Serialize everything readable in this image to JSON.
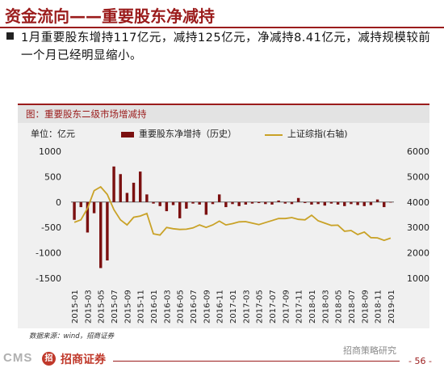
{
  "slide": {
    "title": "资金流向——重要股东净减持",
    "bullet": "1月重要股东增持117亿元，减持125亿元，净减持8.41亿元，减持规模较前一个月已经明显缩小。"
  },
  "chart_data": {
    "type": "bar+line",
    "title": "图：重要股东二级市场增减持",
    "unit_label": "单位：亿元",
    "categories": [
      "2015-01",
      "2015-02",
      "2015-03",
      "2015-04",
      "2015-05",
      "2015-06",
      "2015-07",
      "2015-08",
      "2015-09",
      "2015-10",
      "2015-11",
      "2015-12",
      "2016-01",
      "2016-02",
      "2016-03",
      "2016-04",
      "2016-05",
      "2016-06",
      "2016-07",
      "2016-08",
      "2016-09",
      "2016-10",
      "2016-11",
      "2016-12",
      "2017-01",
      "2017-02",
      "2017-03",
      "2017-04",
      "2017-05",
      "2017-06",
      "2017-07",
      "2017-08",
      "2017-09",
      "2017-10",
      "2017-11",
      "2017-12",
      "2018-01",
      "2018-02",
      "2018-03",
      "2018-04",
      "2018-05",
      "2018-06",
      "2018-07",
      "2018-08",
      "2018-09",
      "2018-10",
      "2018-11",
      "2018-12",
      "2019-01"
    ],
    "tick_labels": [
      "2015-01",
      "2015-03",
      "2015-05",
      "2015-07",
      "2015-09",
      "2015-11",
      "2016-01",
      "2016-03",
      "2016-05",
      "2016-07",
      "2016-09",
      "2016-11",
      "2017-01",
      "2017-03",
      "2017-05",
      "2017-07",
      "2017-09",
      "2017-11",
      "2018-01",
      "2018-03",
      "2018-05",
      "2018-07",
      "2018-09",
      "2018-11",
      "2019-01"
    ],
    "series": [
      {
        "name": "重要股东净增持（历史）",
        "type": "bar",
        "axis": "left",
        "color": "#7b1010",
        "values": [
          -350,
          -100,
          -600,
          -220,
          -1300,
          -1150,
          700,
          550,
          180,
          380,
          600,
          150,
          -30,
          -80,
          -180,
          -60,
          -320,
          -130,
          -30,
          -50,
          -250,
          -40,
          150,
          -100,
          -40,
          -80,
          -50,
          -30,
          -20,
          -40,
          -50,
          30,
          -30,
          -40,
          80,
          -20,
          -50,
          -40,
          -70,
          -30,
          -50,
          -80,
          -40,
          -60,
          -80,
          -60,
          50,
          -100,
          -10
        ]
      },
      {
        "name": "上证综指(右轴)",
        "type": "line",
        "axis": "right",
        "color": "#c9a227",
        "values": [
          3200,
          3300,
          3750,
          4450,
          4600,
          4300,
          3700,
          3300,
          3100,
          3400,
          3450,
          3550,
          2750,
          2700,
          3000,
          2950,
          2920,
          2930,
          2980,
          3100,
          3000,
          3100,
          3250,
          3100,
          3150,
          3220,
          3230,
          3170,
          3110,
          3190,
          3270,
          3350,
          3350,
          3390,
          3320,
          3300,
          3480,
          3260,
          3170,
          3080,
          3090,
          2850,
          2880,
          2720,
          2820,
          2600,
          2590,
          2490,
          2580
        ]
      }
    ],
    "y_left": {
      "ticks": [
        1000,
        500,
        0,
        -500,
        -1000,
        -1500
      ],
      "range": [
        -1500,
        1000
      ]
    },
    "y_right": {
      "ticks": [
        6000,
        5000,
        4000,
        3000,
        2000,
        1000
      ],
      "range": [
        1000,
        6000
      ]
    }
  },
  "source": "数据来源：wind，招商证券",
  "footer": {
    "logo_text": "CMS",
    "logo_mark": "招",
    "company": "招商证券",
    "watermark": "招商策略研究",
    "page": "- 56 -"
  }
}
